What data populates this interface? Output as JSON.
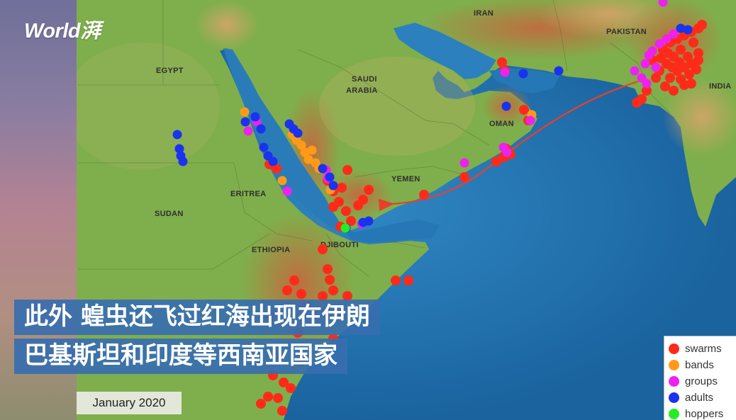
{
  "logo": {
    "text": "World湃"
  },
  "map": {
    "date": "January 2020",
    "countries": [
      {
        "key": "iran",
        "name": "IRAN"
      },
      {
        "key": "pakistan",
        "name": "PAKISTAN"
      },
      {
        "key": "india",
        "name": "INDIA"
      },
      {
        "key": "egypt",
        "name": "EGYPT"
      },
      {
        "key": "saudi",
        "name": "SAUDI\nARABIA"
      },
      {
        "key": "oman",
        "name": "OMAN"
      },
      {
        "key": "yemen",
        "name": "YEMEN"
      },
      {
        "key": "eritrea",
        "name": "ERITREA"
      },
      {
        "key": "sudan",
        "name": "SUDAN"
      },
      {
        "key": "ethiopia",
        "name": "ETHIOPIA"
      },
      {
        "key": "djibouti",
        "name": "DJIBOUTI"
      }
    ],
    "colors": {
      "sea": "#1d6fae",
      "land": "#7fae4a",
      "highlands": "#c9844a",
      "route_arrow": "#e8402a"
    },
    "legend": [
      {
        "key": "swarms",
        "label": "swarms",
        "color": "#ff2a1a"
      },
      {
        "key": "bands",
        "label": "bands",
        "color": "#ff9a18"
      },
      {
        "key": "groups",
        "label": "groups",
        "color": "#ee22ee"
      },
      {
        "key": "adults",
        "label": "adults",
        "color": "#1a33ee"
      },
      {
        "key": "hoppers",
        "label": "hoppers",
        "color": "#22ee22"
      }
    ]
  },
  "subtitle": {
    "line1": "此外 蝗虫还飞过红海出现在伊朗",
    "line2": "巴基斯坦和印度等西南亚国家"
  }
}
